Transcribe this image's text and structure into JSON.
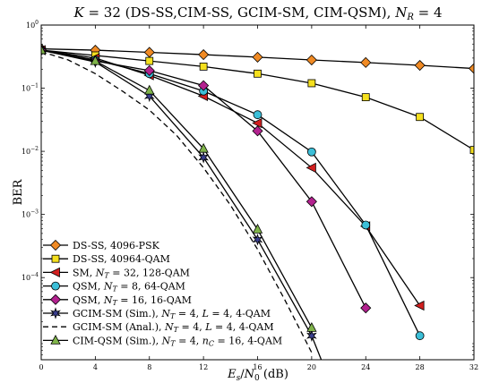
{
  "chart_data": {
    "type": "line",
    "title": "K = 32 (DS-SS,CIM-SS, GCIM-SM, CIM-QSM), N_R = 4",
    "xlabel": "E_s/N_0 (dB)",
    "ylabel": "BER",
    "xlim": [
      0,
      32
    ],
    "ylim": [
      5e-06,
      1
    ],
    "yscale": "log",
    "grid": false,
    "legend_position": "bottom-left",
    "x_ticks": [
      0,
      4,
      8,
      12,
      16,
      20,
      24,
      28,
      32
    ],
    "x_tick_labels": [
      "0",
      "4",
      "8",
      "12",
      "16",
      "20",
      "24",
      "28",
      "32"
    ],
    "y_ticks": [
      1,
      0.1,
      0.01,
      0.001,
      0.0001
    ],
    "y_tick_labels": [
      "10^0",
      "10^-1",
      "10^-2",
      "10^-3",
      "10^-4"
    ],
    "series": [
      {
        "name": "DS-SS, 4096-PSK",
        "color": "#f08a24",
        "marker": "diamond",
        "dash": "none",
        "x": [
          0,
          4,
          8,
          12,
          16,
          20,
          24,
          28,
          32
        ],
        "y": [
          0.42,
          0.4,
          0.37,
          0.34,
          0.31,
          0.28,
          0.255,
          0.23,
          0.205
        ]
      },
      {
        "name": "DS-SS, 40964-QAM",
        "color": "#f5e01e",
        "marker": "square",
        "dash": "none",
        "x": [
          0,
          4,
          8,
          12,
          16,
          20,
          24,
          28,
          32
        ],
        "y": [
          0.4,
          0.33,
          0.27,
          0.22,
          0.17,
          0.12,
          0.072,
          0.035,
          0.0105
        ]
      },
      {
        "name": "SM, N_T = 32, 128-QAM",
        "color": "#d22020",
        "marker": "triangle-left",
        "dash": "none",
        "x": [
          0,
          4,
          8,
          12,
          16,
          20,
          24,
          28
        ],
        "y": [
          0.4,
          0.3,
          0.16,
          0.075,
          0.028,
          0.0055,
          0.00065,
          3.6e-05
        ]
      },
      {
        "name": "QSM, N_T = 8, 64-QAM",
        "color": "#3cbfd8",
        "marker": "circle",
        "dash": "none",
        "x": [
          0,
          4,
          8,
          12,
          16,
          20,
          24,
          28
        ],
        "y": [
          0.4,
          0.28,
          0.17,
          0.09,
          0.038,
          0.0098,
          0.00068,
          1.2e-05
        ]
      },
      {
        "name": "QSM, N_T = 16, 16-QAM",
        "color": "#b3228f",
        "marker": "diamond",
        "dash": "none",
        "x": [
          0,
          4,
          8,
          12,
          16,
          20,
          24
        ],
        "y": [
          0.4,
          0.27,
          0.19,
          0.11,
          0.021,
          0.0016,
          3.3e-05
        ]
      },
      {
        "name": "GCIM-SM (Sim.), N_T = 4, L = 4, 4-QAM",
        "color": "#3a3f8f",
        "marker": "star",
        "dash": "none",
        "x": [
          0,
          4,
          8,
          12,
          16,
          20,
          21
        ],
        "y": [
          0.4,
          0.26,
          0.075,
          0.008,
          0.0004,
          1.2e-05,
          3.5e-06
        ]
      },
      {
        "name": "GCIM-SM (Anal.), N_T = 4, L = 4, 4-QAM",
        "color": "#000000",
        "marker": "none",
        "dash": "dashed",
        "x": [
          0,
          2,
          4,
          6,
          8,
          10,
          12,
          14,
          16,
          18,
          20
        ],
        "y": [
          0.38,
          0.28,
          0.17,
          0.09,
          0.045,
          0.018,
          0.0055,
          0.0014,
          0.00028,
          4.5e-05,
          6.5e-06
        ]
      },
      {
        "name": "CIM-QSM (Sim.), N_T = 4, n_C = 16, 4-QAM",
        "color": "#7fb34a",
        "marker": "triangle-up",
        "dash": "none",
        "x": [
          0,
          4,
          8,
          12,
          16,
          20
        ],
        "y": [
          0.4,
          0.27,
          0.092,
          0.011,
          0.00058,
          1.6e-05
        ]
      }
    ]
  }
}
